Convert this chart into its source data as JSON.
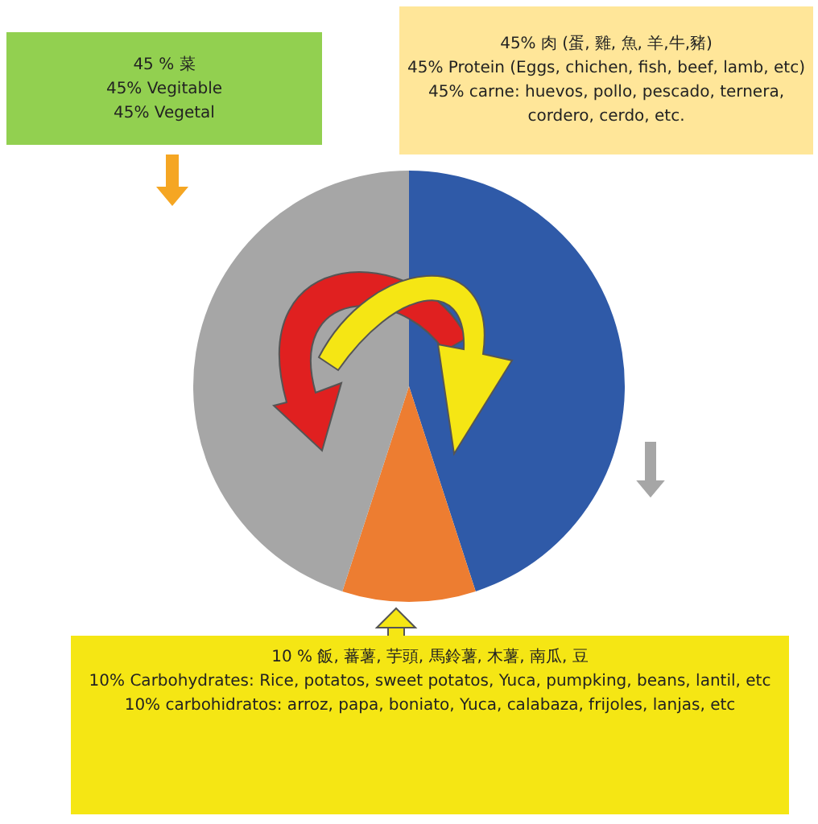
{
  "chart_data": {
    "type": "pie",
    "categories": [
      "45% 肉 (蛋, 雞, 魚, 羊,牛,豬)\n45% Protein (Eggs, chichen, fish, beef, lamb, etc)\n45% carne: huevos, pollo, pescado, ternera,\ncordero, cerdo, etc.",
      "10 % 飯, 蕃薯, 芋頭, 馬鈴薯, 木薯, 南瓜, 豆\n10% Carbohydrates: Rice, potatos, sweet potatos, Yuca, pumpking, beans, lantil, etc\n10% carbohidratos: arroz, papa, boniato, Yuca, calabaza, frijoles, lanjas, etc",
      "45 % 菜\n45% Vegitable\n45% Vegetal"
    ],
    "values": [
      45,
      10,
      45
    ],
    "colors": [
      "#2f5aa8",
      "#ed7d31",
      "#a6a6a6"
    ],
    "legend": false
  }
}
